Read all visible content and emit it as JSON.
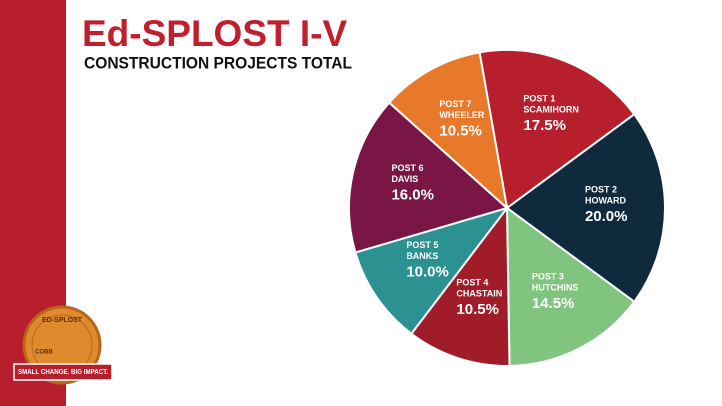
{
  "chart_data": {
    "type": "pie",
    "title": "Ed-SPLOST I-V",
    "subtitle": "CONSTRUCTION PROJECTS TOTAL",
    "categories": [
      {
        "post": "POST 1",
        "name": "SCAMIHORN"
      },
      {
        "post": "POST 2",
        "name": "HOWARD"
      },
      {
        "post": "POST 3",
        "name": "HUTCHINS"
      },
      {
        "post": "POST 4",
        "name": "CHASTAIN"
      },
      {
        "post": "POST 5",
        "name": "BANKS"
      },
      {
        "post": "POST 6",
        "name": "DAVIS"
      },
      {
        "post": "POST 7",
        "name": "WHEELER"
      }
    ],
    "values": [
      17.5,
      20.0,
      14.5,
      10.5,
      10.0,
      16.0,
      10.5
    ],
    "value_labels": [
      "17.5%",
      "20.0%",
      "14.5%",
      "10.5%",
      "10.0%",
      "16.0%",
      "10.5%"
    ],
    "colors": [
      "#b81f2d",
      "#0f2a3d",
      "#80c47f",
      "#a11c29",
      "#2b9191",
      "#7a1646",
      "#e8782a"
    ]
  },
  "logo": {
    "top": "ED-SPLOST",
    "coin": "COBB",
    "banner": "SMALL CHANGE. BIG IMPACT."
  }
}
